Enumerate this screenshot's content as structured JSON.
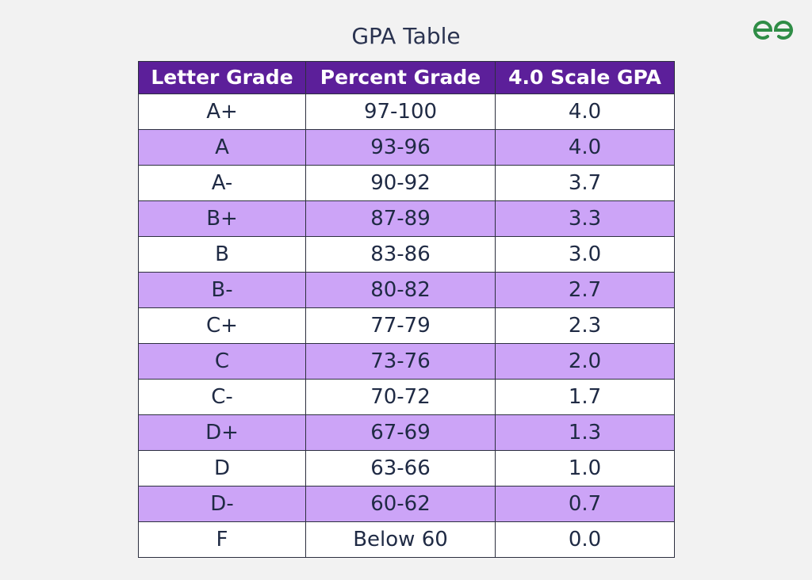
{
  "title": "GPA Table",
  "logo": {
    "icon": "geeksforgeeks-logo-icon",
    "color": "#2f8d46"
  },
  "colors": {
    "header_bg": "#5c1f9a",
    "row_alt_bg": "#cca4f7",
    "row_bg": "#ffffff",
    "page_bg": "#f2f2f2"
  },
  "table": {
    "headers": [
      "Letter Grade",
      "Percent Grade",
      "4.0 Scale GPA"
    ],
    "rows": [
      [
        "A+",
        "97-100",
        "4.0"
      ],
      [
        "A",
        "93-96",
        "4.0"
      ],
      [
        "A-",
        "90-92",
        "3.7"
      ],
      [
        "B+",
        "87-89",
        "3.3"
      ],
      [
        "B",
        "83-86",
        "3.0"
      ],
      [
        "B-",
        "80-82",
        "2.7"
      ],
      [
        "C+",
        "77-79",
        "2.3"
      ],
      [
        "C",
        "73-76",
        "2.0"
      ],
      [
        "C-",
        "70-72",
        "1.7"
      ],
      [
        "D+",
        "67-69",
        "1.3"
      ],
      [
        "D",
        "63-66",
        "1.0"
      ],
      [
        "D-",
        "60-62",
        "0.7"
      ],
      [
        "F",
        "Below 60",
        "0.0"
      ]
    ]
  }
}
